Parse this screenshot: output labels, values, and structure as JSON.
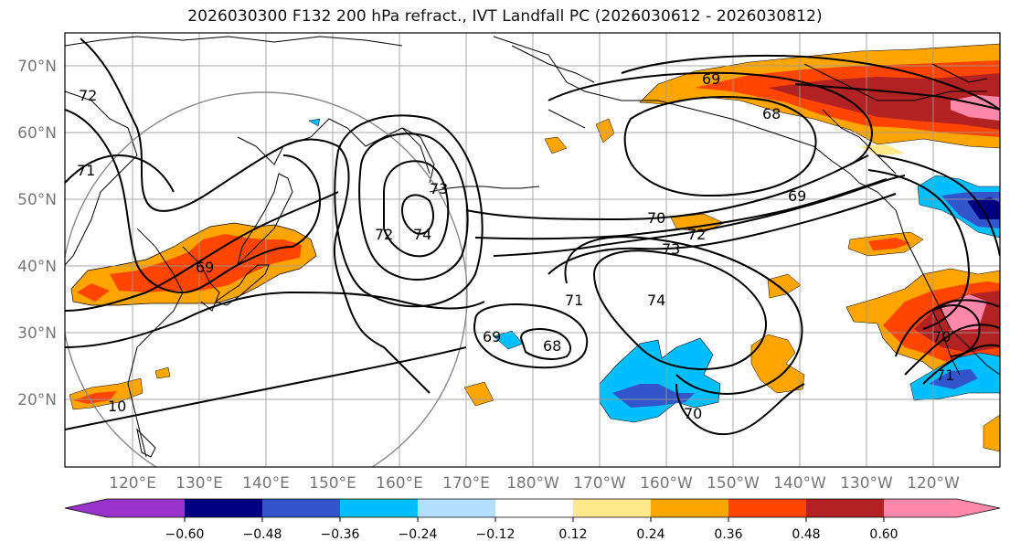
{
  "title": "2026030300 F132 200 hPa refract., IVT Landfall PC (2026030612 - 2026030812)",
  "latitude_labels": [
    "70°N",
    "60°N",
    "50°N",
    "40°N",
    "30°N",
    "20°N"
  ],
  "longitude_labels": [
    "120°E",
    "130°E",
    "140°E",
    "150°E",
    "160°E",
    "170°E",
    "180°W",
    "170°W",
    "160°W",
    "150°W",
    "140°W",
    "130°W",
    "120°W"
  ],
  "contour_labels": [
    "69",
    "68",
    "69",
    "70",
    "72",
    "73",
    "74",
    "72",
    "73",
    "74",
    "71",
    "72",
    "69",
    "68",
    "69",
    "70",
    "71",
    "70",
    "71",
    "10"
  ],
  "colorbar": {
    "ticks": [
      "−0.60",
      "−0.48",
      "−0.36",
      "−0.24",
      "−0.12",
      "0.12",
      "0.24",
      "0.36",
      "0.48",
      "0.60"
    ],
    "colors": [
      "#9933cc",
      "#000080",
      "#3355cc",
      "#00bfff",
      "#b3e0ff",
      "#ffffff",
      "#ffe98a",
      "#ffa500",
      "#ff4500",
      "#b22222",
      "#ff88aa",
      "#ff88aa"
    ]
  },
  "palette": {
    "light_yellow": "#ffe98a",
    "orange": "#ffa500",
    "red_orange": "#ff4500",
    "dark_red": "#b22222",
    "pink": "#ff88aa",
    "light_blue": "#b3e0ff",
    "cyan": "#00bfff",
    "blue": "#3355cc",
    "navy": "#000080",
    "purple": "#9933cc"
  }
}
